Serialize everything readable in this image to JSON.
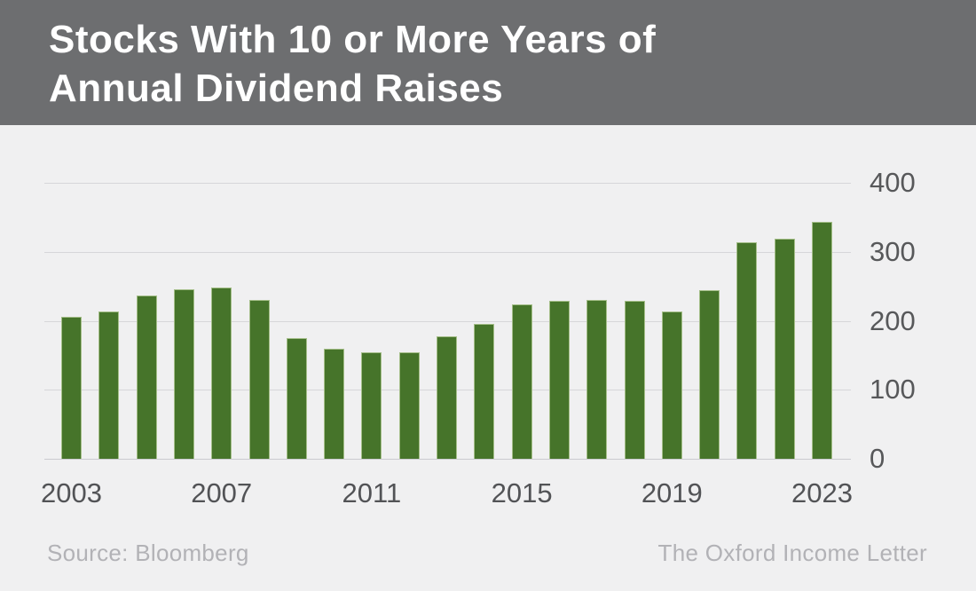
{
  "header": {
    "title_lines": [
      "Stocks With 10 or More Years of",
      "Annual Dividend Raises"
    ],
    "bg_color": "#6d6e70",
    "text_color": "#ffffff"
  },
  "chart_data": {
    "type": "bar",
    "title": "Stocks With 10 or More Years of Annual Dividend Raises",
    "categories": [
      2003,
      2004,
      2005,
      2006,
      2007,
      2008,
      2009,
      2010,
      2011,
      2012,
      2013,
      2014,
      2015,
      2016,
      2017,
      2018,
      2019,
      2020,
      2021,
      2022,
      2023
    ],
    "values": [
      206,
      214,
      237,
      246,
      248,
      230,
      175,
      160,
      155,
      154,
      178,
      196,
      224,
      229,
      230,
      229,
      214,
      245,
      314,
      319,
      343
    ],
    "xlabel": "",
    "ylabel": "",
    "ylim": [
      0,
      400
    ],
    "yticks": [
      400,
      300,
      200,
      100,
      0
    ],
    "xtick_labels": [
      "2003",
      "2007",
      "2011",
      "2015",
      "2019",
      "2023"
    ],
    "xtick_years": [
      2003,
      2007,
      2011,
      2015,
      2019,
      2023
    ],
    "grid": "horizontal",
    "legend": "none",
    "y_axis_side": "right",
    "bar_color": "#46742a",
    "bar_border_color": "#a4be88",
    "axis_text_color": "#57585a",
    "gridline_color": "#d6d6d9",
    "background_color": "#f0f0f1"
  },
  "footer": {
    "source": "Source: Bloomberg",
    "brand": "The Oxford Income Letter",
    "text_color": "#b2b2b6"
  }
}
